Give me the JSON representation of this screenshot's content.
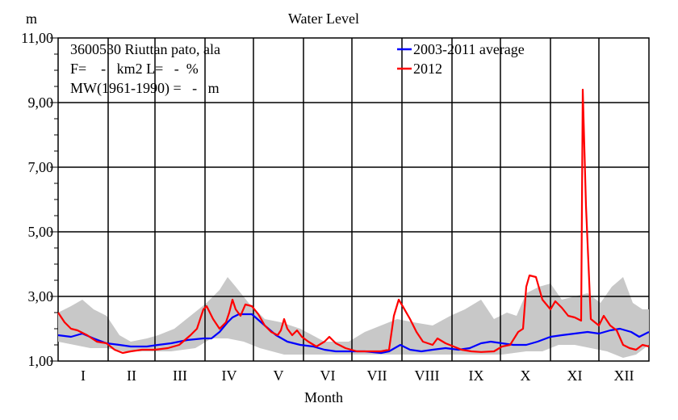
{
  "chart_data": {
    "type": "line",
    "title": "Water Level",
    "ylabel": "m",
    "xlabel": "Month",
    "ylim": [
      1,
      11
    ],
    "yticks": [
      "1,00",
      "3,00",
      "5,00",
      "7,00",
      "9,00",
      "11,00"
    ],
    "yticks_values": [
      1,
      3,
      5,
      7,
      9,
      11
    ],
    "months": [
      "I",
      "II",
      "III",
      "IV",
      "V",
      "VI",
      "VII",
      "VIII",
      "IX",
      "X",
      "XI",
      "XII"
    ],
    "month_lengths": [
      31,
      29,
      31,
      30,
      31,
      30,
      31,
      31,
      30,
      31,
      30,
      31
    ],
    "info": {
      "line1": "3600530 Riuttan pato, ala",
      "line2": "F=    -   km2 L=   -  %",
      "line3": "MW(1961-1990) =   -   m"
    },
    "legend": {
      "position": "top-right",
      "items": [
        {
          "label": "2003-2011 average",
          "color": "#0000ff"
        },
        {
          "label": "2012",
          "color": "#ff0000"
        }
      ]
    },
    "band": {
      "name": "2003-2011 range",
      "color": "#c8c8c8",
      "upper": [
        [
          0,
          2.5
        ],
        [
          8,
          2.7
        ],
        [
          15,
          2.9
        ],
        [
          22,
          2.6
        ],
        [
          30,
          2.4
        ],
        [
          38,
          1.8
        ],
        [
          45,
          1.6
        ],
        [
          55,
          1.7
        ],
        [
          62,
          1.8
        ],
        [
          72,
          2.0
        ],
        [
          82,
          2.4
        ],
        [
          92,
          2.8
        ],
        [
          100,
          3.2
        ],
        [
          105,
          3.6
        ],
        [
          110,
          3.3
        ],
        [
          118,
          2.8
        ],
        [
          128,
          2.3
        ],
        [
          138,
          2.2
        ],
        [
          150,
          2.0
        ],
        [
          165,
          1.6
        ],
        [
          180,
          1.6
        ],
        [
          190,
          1.9
        ],
        [
          200,
          2.1
        ],
        [
          210,
          2.3
        ],
        [
          220,
          2.2
        ],
        [
          232,
          2.1
        ],
        [
          243,
          2.4
        ],
        [
          252,
          2.6
        ],
        [
          262,
          2.9
        ],
        [
          270,
          2.3
        ],
        [
          278,
          2.5
        ],
        [
          284,
          2.4
        ],
        [
          290,
          3.1
        ],
        [
          298,
          3.3
        ],
        [
          305,
          3.4
        ],
        [
          312,
          2.9
        ],
        [
          320,
          3.0
        ],
        [
          328,
          3.1
        ],
        [
          336,
          2.8
        ],
        [
          343,
          3.3
        ],
        [
          350,
          3.6
        ],
        [
          356,
          2.8
        ],
        [
          362,
          2.6
        ],
        [
          366,
          2.6
        ]
      ],
      "lower": [
        [
          0,
          1.6
        ],
        [
          10,
          1.5
        ],
        [
          20,
          1.4
        ],
        [
          30,
          1.4
        ],
        [
          40,
          1.3
        ],
        [
          55,
          1.3
        ],
        [
          70,
          1.3
        ],
        [
          85,
          1.4
        ],
        [
          95,
          1.7
        ],
        [
          105,
          1.7
        ],
        [
          115,
          1.6
        ],
        [
          125,
          1.4
        ],
        [
          140,
          1.2
        ],
        [
          155,
          1.2
        ],
        [
          170,
          1.2
        ],
        [
          185,
          1.2
        ],
        [
          200,
          1.2
        ],
        [
          215,
          1.2
        ],
        [
          230,
          1.2
        ],
        [
          245,
          1.2
        ],
        [
          260,
          1.2
        ],
        [
          275,
          1.2
        ],
        [
          290,
          1.3
        ],
        [
          300,
          1.3
        ],
        [
          310,
          1.5
        ],
        [
          320,
          1.5
        ],
        [
          330,
          1.4
        ],
        [
          340,
          1.3
        ],
        [
          350,
          1.1
        ],
        [
          358,
          1.2
        ],
        [
          366,
          1.5
        ]
      ]
    },
    "series": [
      {
        "name": "2003-2011 average",
        "color": "#0000ff",
        "points": [
          [
            0,
            1.8
          ],
          [
            8,
            1.75
          ],
          [
            15,
            1.85
          ],
          [
            22,
            1.7
          ],
          [
            30,
            1.55
          ],
          [
            38,
            1.5
          ],
          [
            45,
            1.45
          ],
          [
            55,
            1.45
          ],
          [
            62,
            1.5
          ],
          [
            70,
            1.55
          ],
          [
            80,
            1.65
          ],
          [
            90,
            1.7
          ],
          [
            95,
            1.7
          ],
          [
            100,
            1.9
          ],
          [
            105,
            2.2
          ],
          [
            108,
            2.35
          ],
          [
            112,
            2.45
          ],
          [
            120,
            2.45
          ],
          [
            128,
            2.1
          ],
          [
            135,
            1.8
          ],
          [
            142,
            1.6
          ],
          [
            150,
            1.5
          ],
          [
            158,
            1.45
          ],
          [
            165,
            1.35
          ],
          [
            172,
            1.3
          ],
          [
            180,
            1.3
          ],
          [
            190,
            1.3
          ],
          [
            200,
            1.25
          ],
          [
            205,
            1.3
          ],
          [
            212,
            1.5
          ],
          [
            218,
            1.35
          ],
          [
            225,
            1.3
          ],
          [
            232,
            1.35
          ],
          [
            240,
            1.4
          ],
          [
            248,
            1.35
          ],
          [
            255,
            1.4
          ],
          [
            262,
            1.55
          ],
          [
            268,
            1.6
          ],
          [
            275,
            1.55
          ],
          [
            282,
            1.5
          ],
          [
            290,
            1.5
          ],
          [
            297,
            1.6
          ],
          [
            305,
            1.75
          ],
          [
            312,
            1.8
          ],
          [
            320,
            1.85
          ],
          [
            328,
            1.9
          ],
          [
            335,
            1.85
          ],
          [
            342,
            1.95
          ],
          [
            348,
            2.0
          ],
          [
            355,
            1.9
          ],
          [
            360,
            1.75
          ],
          [
            366,
            1.9
          ]
        ]
      },
      {
        "name": "2012",
        "color": "#ff0000",
        "points": [
          [
            0,
            2.5
          ],
          [
            4,
            2.2
          ],
          [
            8,
            2.0
          ],
          [
            12,
            1.95
          ],
          [
            18,
            1.8
          ],
          [
            24,
            1.6
          ],
          [
            30,
            1.55
          ],
          [
            35,
            1.35
          ],
          [
            40,
            1.25
          ],
          [
            45,
            1.3
          ],
          [
            52,
            1.35
          ],
          [
            60,
            1.35
          ],
          [
            68,
            1.4
          ],
          [
            75,
            1.5
          ],
          [
            82,
            1.8
          ],
          [
            86,
            2.0
          ],
          [
            90,
            2.6
          ],
          [
            92,
            2.7
          ],
          [
            96,
            2.3
          ],
          [
            100,
            2.0
          ],
          [
            104,
            2.2
          ],
          [
            106,
            2.5
          ],
          [
            108,
            2.9
          ],
          [
            110,
            2.6
          ],
          [
            113,
            2.4
          ],
          [
            116,
            2.75
          ],
          [
            120,
            2.7
          ],
          [
            124,
            2.45
          ],
          [
            128,
            2.1
          ],
          [
            132,
            1.9
          ],
          [
            136,
            1.8
          ],
          [
            138,
            1.95
          ],
          [
            140,
            2.3
          ],
          [
            142,
            2.0
          ],
          [
            145,
            1.8
          ],
          [
            148,
            1.95
          ],
          [
            151,
            1.75
          ],
          [
            155,
            1.6
          ],
          [
            160,
            1.45
          ],
          [
            165,
            1.6
          ],
          [
            168,
            1.75
          ],
          [
            172,
            1.55
          ],
          [
            178,
            1.4
          ],
          [
            185,
            1.3
          ],
          [
            192,
            1.3
          ],
          [
            200,
            1.3
          ],
          [
            205,
            1.35
          ],
          [
            208,
            2.4
          ],
          [
            211,
            2.9
          ],
          [
            214,
            2.65
          ],
          [
            218,
            2.3
          ],
          [
            222,
            1.9
          ],
          [
            226,
            1.6
          ],
          [
            232,
            1.5
          ],
          [
            235,
            1.7
          ],
          [
            240,
            1.55
          ],
          [
            245,
            1.45
          ],
          [
            250,
            1.35
          ],
          [
            256,
            1.3
          ],
          [
            262,
            1.28
          ],
          [
            270,
            1.3
          ],
          [
            275,
            1.45
          ],
          [
            280,
            1.5
          ],
          [
            285,
            1.9
          ],
          [
            288,
            2.0
          ],
          [
            290,
            3.3
          ],
          [
            292,
            3.65
          ],
          [
            296,
            3.6
          ],
          [
            300,
            2.9
          ],
          [
            305,
            2.6
          ],
          [
            308,
            2.85
          ],
          [
            312,
            2.65
          ],
          [
            316,
            2.4
          ],
          [
            320,
            2.35
          ],
          [
            324,
            2.25
          ],
          [
            325,
            9.4
          ],
          [
            327,
            5.8
          ],
          [
            330,
            2.3
          ],
          [
            335,
            2.1
          ],
          [
            338,
            2.4
          ],
          [
            342,
            2.1
          ],
          [
            346,
            1.95
          ],
          [
            350,
            1.5
          ],
          [
            354,
            1.4
          ],
          [
            358,
            1.35
          ],
          [
            362,
            1.5
          ],
          [
            366,
            1.45
          ]
        ]
      }
    ]
  }
}
